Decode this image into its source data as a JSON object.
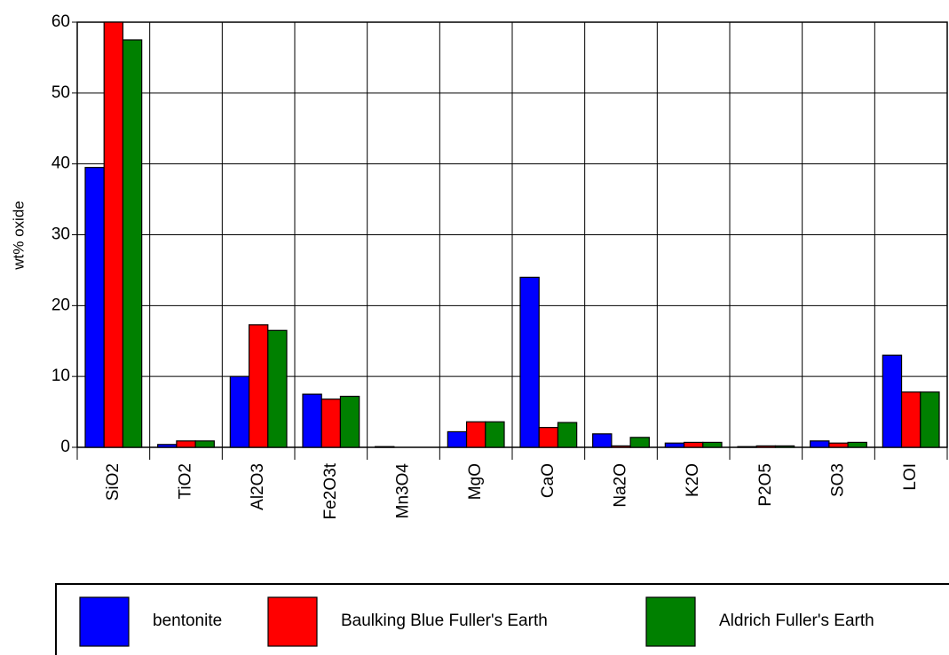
{
  "chart_data": {
    "type": "bar",
    "y_label": "wt% oxide",
    "categories": [
      "SiO2",
      "TiO2",
      "Al2O3",
      "Fe2O3t",
      "Mn3O4",
      "MgO",
      "CaO",
      "Na2O",
      "K2O",
      "P2O5",
      "SO3",
      "LOI"
    ],
    "series": [
      {
        "name": "bentonite",
        "color": "#0000ff",
        "values": [
          39.5,
          0.4,
          10,
          7.5,
          0.1,
          2.2,
          24,
          1.9,
          0.6,
          0.1,
          0.9,
          13
        ]
      },
      {
        "name": "Baulking Blue Fuller's Earth",
        "color": "#ff0000",
        "values": [
          60,
          0.9,
          17.3,
          6.8,
          0,
          3.6,
          2.8,
          0.2,
          0.7,
          0.2,
          0.6,
          7.8
        ]
      },
      {
        "name": "Aldrich Fuller's Earth",
        "color": "#008000",
        "values": [
          57.5,
          0.9,
          16.5,
          7.2,
          0,
          3.6,
          3.5,
          1.4,
          0.7,
          0.2,
          0.7,
          7.8
        ]
      }
    ],
    "ylim": [
      0,
      60
    ],
    "yticks": [
      0,
      10,
      20,
      30,
      40,
      50,
      60
    ],
    "grid": true
  }
}
